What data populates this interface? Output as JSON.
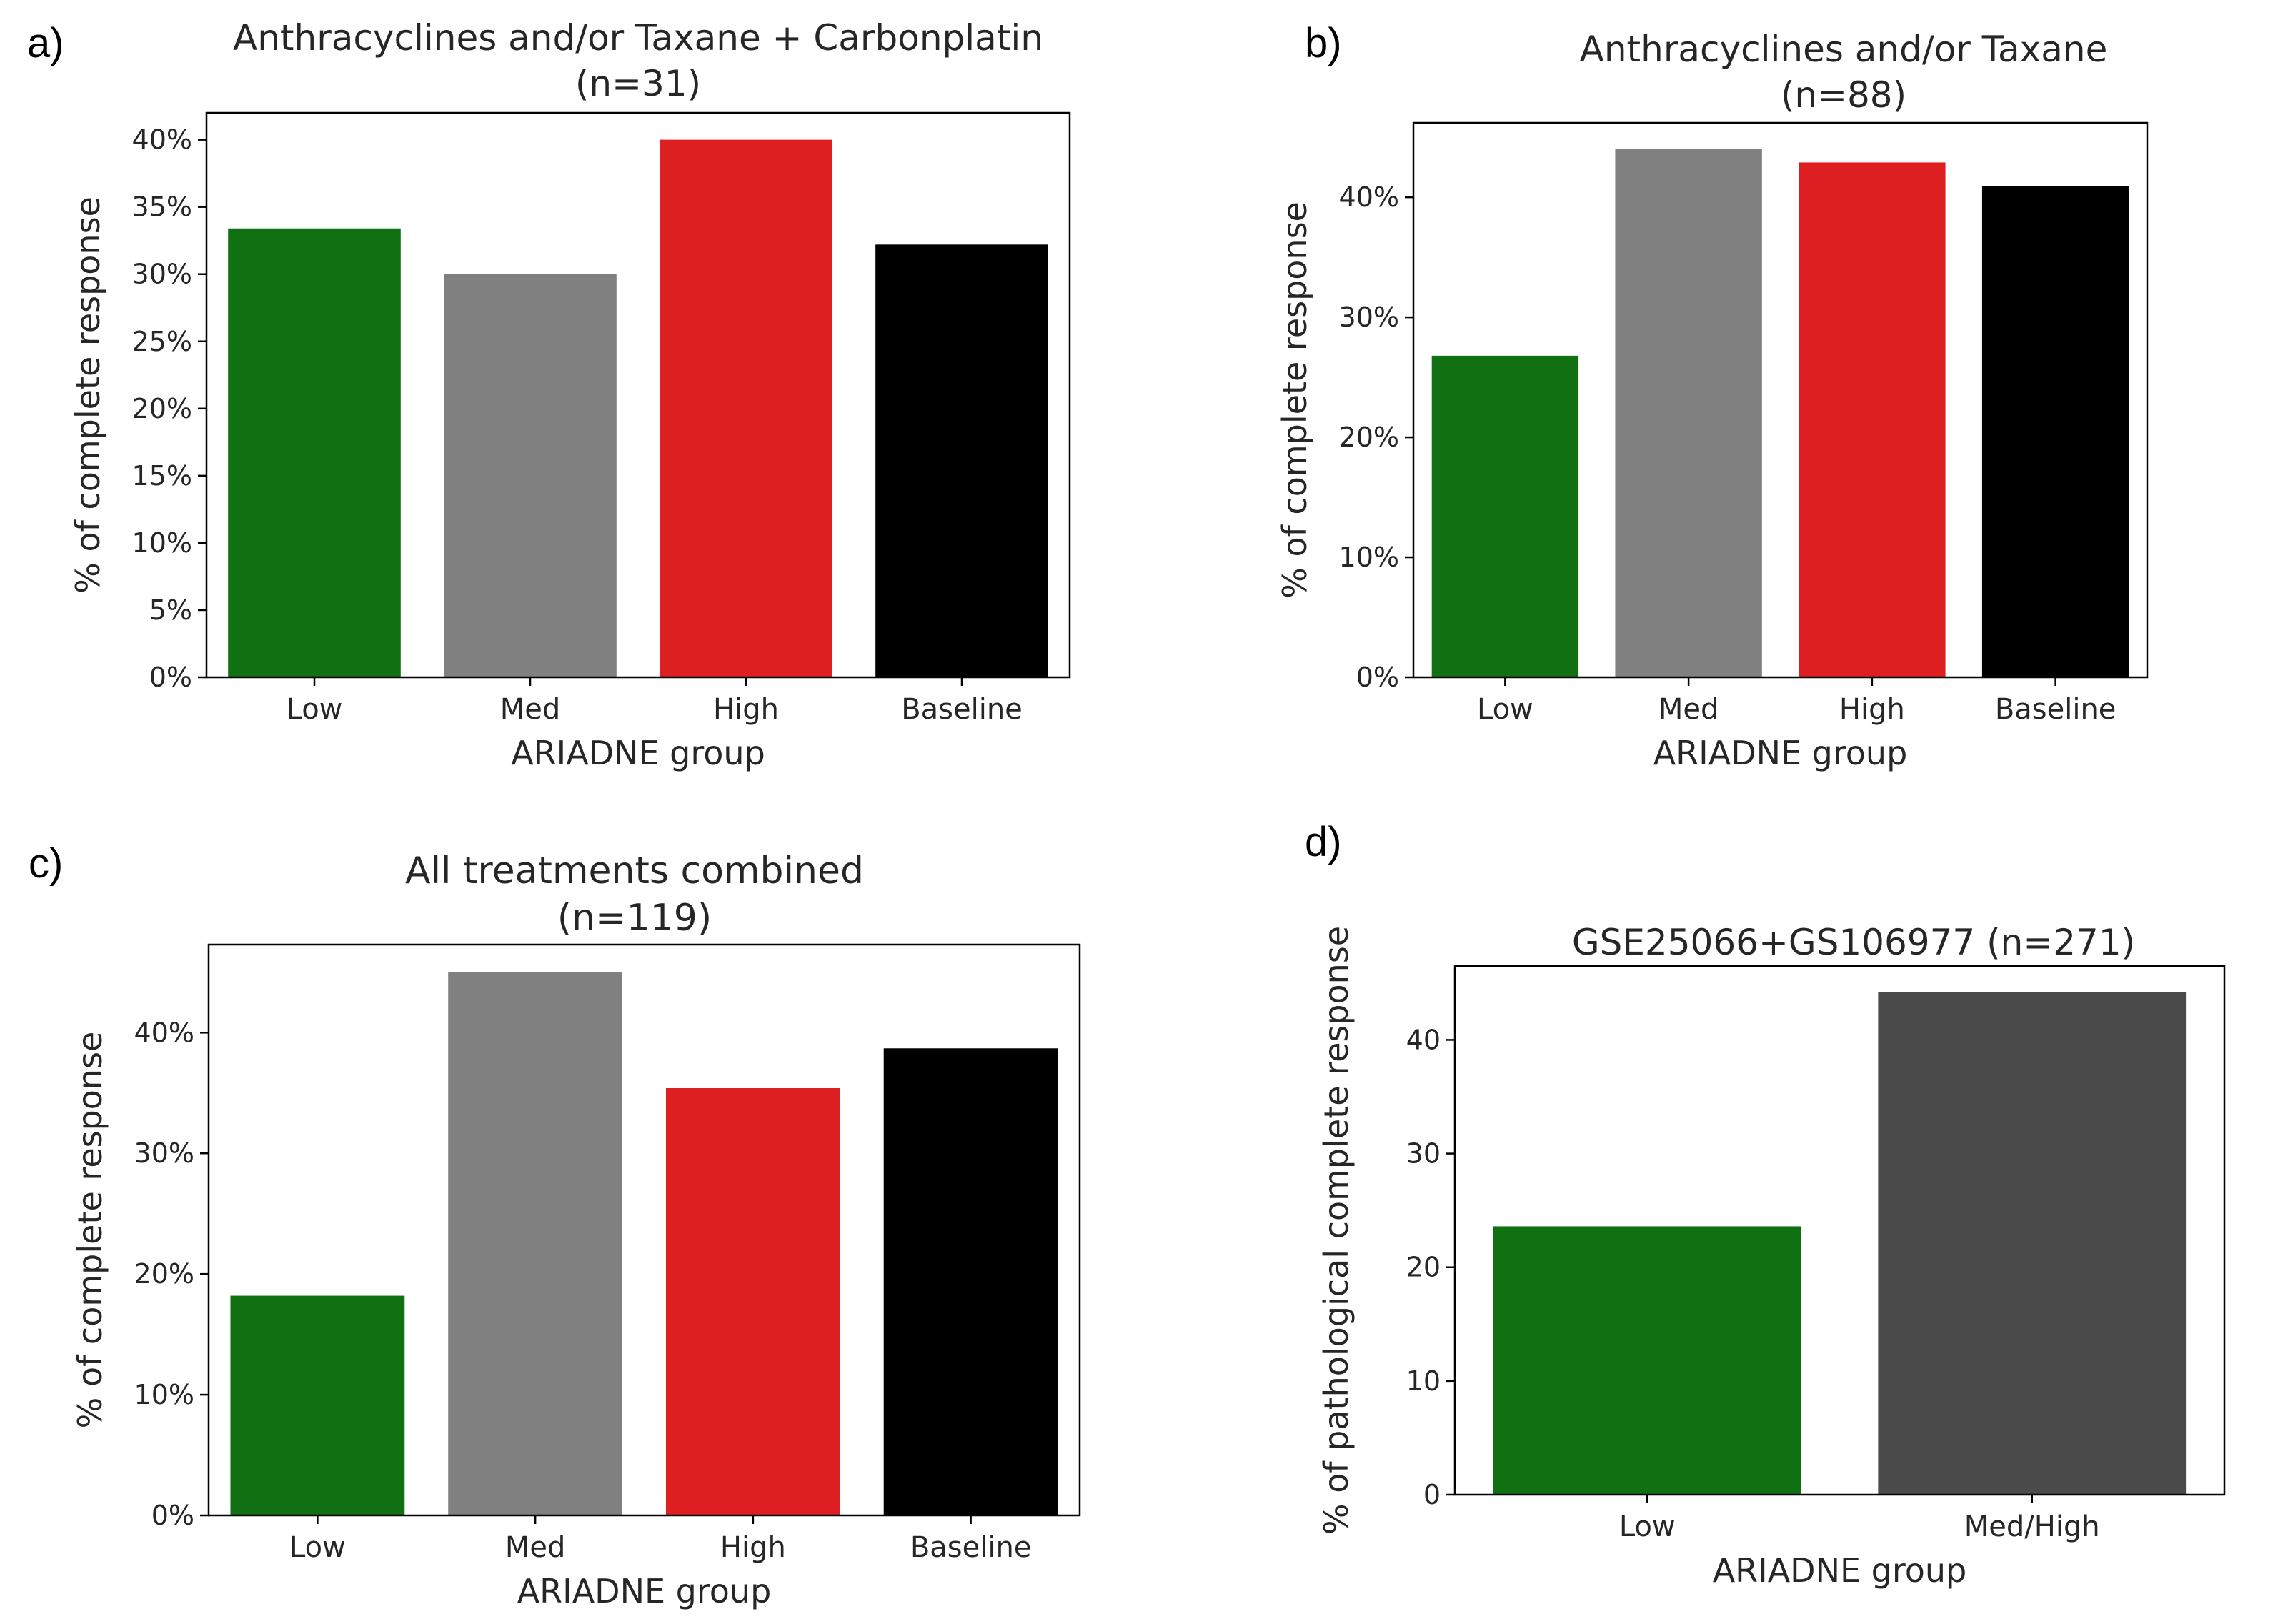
{
  "chart_data": [
    {
      "type": "bar",
      "panel_label": "a)",
      "title": [
        "Anthracyclines and/or Taxane + Carbonplatin",
        "(n=31)"
      ],
      "xlabel": "ARIADNE group",
      "ylabel": "% of complete response",
      "categories": [
        "Low",
        "Med",
        "High",
        "Baseline"
      ],
      "values": [
        33.4,
        30.0,
        40.0,
        32.2
      ],
      "colors": [
        "#117011",
        "#808080",
        "#de1f21",
        "#000000"
      ],
      "ylim": [
        0,
        42
      ],
      "yticks": [
        0,
        5,
        10,
        15,
        20,
        25,
        30,
        35,
        40
      ],
      "ytick_labels": [
        "0%",
        "5%",
        "10%",
        "15%",
        "20%",
        "25%",
        "30%",
        "35%",
        "40%"
      ],
      "grid": false
    },
    {
      "type": "bar",
      "panel_label": "b)",
      "title": [
        "Anthracyclines and/or Taxane",
        "(n=88)"
      ],
      "xlabel": "ARIADNE group",
      "ylabel": "% of complete response",
      "categories": [
        "Low",
        "Med",
        "High",
        "Baseline"
      ],
      "values": [
        26.8,
        44.0,
        42.9,
        40.9
      ],
      "colors": [
        "#117011",
        "#808080",
        "#de1f21",
        "#000000"
      ],
      "ylim": [
        0,
        46.2
      ],
      "yticks": [
        0,
        10,
        20,
        30,
        40
      ],
      "ytick_labels": [
        "0%",
        "10%",
        "20%",
        "30%",
        "40%"
      ],
      "grid": false
    },
    {
      "type": "bar",
      "panel_label": "c)",
      "title": [
        "All treatments combined",
        "(n=119)"
      ],
      "xlabel": "ARIADNE group",
      "ylabel": "% of complete response",
      "categories": [
        "Low",
        "Med",
        "High",
        "Baseline"
      ],
      "values": [
        18.2,
        45.0,
        35.4,
        38.7
      ],
      "colors": [
        "#117011",
        "#808080",
        "#de1f21",
        "#000000"
      ],
      "ylim": [
        0,
        47.3
      ],
      "yticks": [
        0,
        10,
        20,
        30,
        40
      ],
      "ytick_labels": [
        "0%",
        "10%",
        "20%",
        "30%",
        "40%"
      ],
      "grid": false
    },
    {
      "type": "bar",
      "panel_label": "d)",
      "title": [
        "GSE25066+GS106977 (n=271)"
      ],
      "xlabel": "ARIADNE group",
      "ylabel": "% of pathological complete response",
      "categories": [
        "Low",
        "Med/High"
      ],
      "values": [
        23.6,
        44.2
      ],
      "colors": [
        "#117011",
        "#4b4b4b"
      ],
      "ylim": [
        0,
        46.5
      ],
      "yticks": [
        0,
        10,
        20,
        30,
        40
      ],
      "ytick_labels": [
        "0",
        "10",
        "20",
        "30",
        "40"
      ],
      "grid": false
    }
  ]
}
